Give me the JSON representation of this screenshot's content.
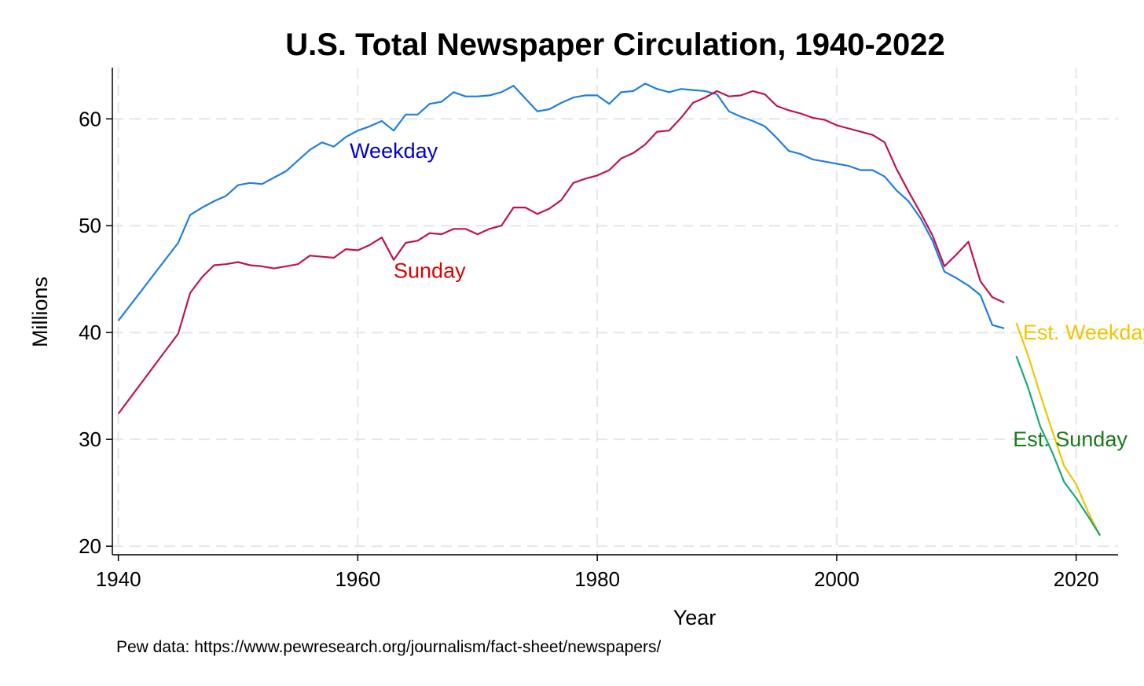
{
  "chart_data": {
    "type": "line",
    "title": "U.S. Total Newspaper Circulation, 1940-2022",
    "xlabel": "Year",
    "ylabel": "Millions",
    "xlim": [
      1939.5,
      2023.5
    ],
    "ylim": [
      19.2,
      64.8
    ],
    "xticks": [
      1940,
      1960,
      1980,
      2000,
      2020
    ],
    "yticks": [
      20,
      30,
      40,
      50,
      60
    ],
    "grid": true,
    "source_note": "Pew data: https://www.pewresearch.org/journalism/fact-sheet/newspapers/",
    "series": [
      {
        "name": "Weekday",
        "color": "#1f7fe0",
        "label_color": "#0000cc",
        "label_at": [
          1963,
          57
        ],
        "x": [
          1940,
          1945,
          1946,
          1947,
          1948,
          1949,
          1950,
          1951,
          1952,
          1953,
          1954,
          1955,
          1956,
          1957,
          1958,
          1959,
          1960,
          1961,
          1962,
          1963,
          1964,
          1965,
          1966,
          1967,
          1968,
          1969,
          1970,
          1971,
          1972,
          1973,
          1974,
          1975,
          1976,
          1977,
          1978,
          1979,
          1980,
          1981,
          1982,
          1983,
          1984,
          1985,
          1986,
          1987,
          1988,
          1989,
          1990,
          1991,
          1992,
          1993,
          1994,
          1995,
          1996,
          1997,
          1998,
          1999,
          2000,
          2001,
          2002,
          2003,
          2004,
          2005,
          2006,
          2007,
          2008,
          2009,
          2010,
          2011,
          2012,
          2013,
          2014
        ],
        "y": [
          41.1,
          48.4,
          51.0,
          51.7,
          52.3,
          52.8,
          53.8,
          54.0,
          53.9,
          54.5,
          55.1,
          56.1,
          57.1,
          57.8,
          57.4,
          58.3,
          58.9,
          59.3,
          59.8,
          58.9,
          60.4,
          60.4,
          61.4,
          61.6,
          62.5,
          62.1,
          62.1,
          62.2,
          62.5,
          63.1,
          61.9,
          60.7,
          60.9,
          61.5,
          62.0,
          62.2,
          62.2,
          61.4,
          62.5,
          62.6,
          63.3,
          62.8,
          62.5,
          62.8,
          62.7,
          62.6,
          62.3,
          60.7,
          60.2,
          59.8,
          59.3,
          58.2,
          57.0,
          56.7,
          56.2,
          56.0,
          55.8,
          55.6,
          55.2,
          55.2,
          54.6,
          53.3,
          52.3,
          50.7,
          48.6,
          45.7,
          45.1,
          44.4,
          43.5,
          40.7,
          40.4
        ]
      },
      {
        "name": "Sunday",
        "color": "#c0134e",
        "label_color": "#dd0000",
        "label_at": [
          1966,
          45.8
        ],
        "x": [
          1940,
          1945,
          1946,
          1947,
          1948,
          1949,
          1950,
          1951,
          1952,
          1953,
          1954,
          1955,
          1956,
          1957,
          1958,
          1959,
          1960,
          1961,
          1962,
          1963,
          1964,
          1965,
          1966,
          1967,
          1968,
          1969,
          1970,
          1971,
          1972,
          1973,
          1974,
          1975,
          1976,
          1977,
          1978,
          1979,
          1980,
          1981,
          1982,
          1983,
          1984,
          1985,
          1986,
          1987,
          1988,
          1989,
          1990,
          1991,
          1992,
          1993,
          1994,
          1995,
          1996,
          1997,
          1998,
          1999,
          2000,
          2001,
          2002,
          2003,
          2004,
          2005,
          2006,
          2007,
          2008,
          2009,
          2010,
          2011,
          2012,
          2013,
          2014
        ],
        "y": [
          32.4,
          39.9,
          43.7,
          45.2,
          46.3,
          46.4,
          46.6,
          46.3,
          46.2,
          46.0,
          46.2,
          46.4,
          47.2,
          47.1,
          47.0,
          47.8,
          47.7,
          48.2,
          48.9,
          46.8,
          48.4,
          48.6,
          49.3,
          49.2,
          49.7,
          49.7,
          49.2,
          49.7,
          50.0,
          51.7,
          51.7,
          51.1,
          51.6,
          52.4,
          54.0,
          54.4,
          54.7,
          55.2,
          56.3,
          56.8,
          57.6,
          58.8,
          58.9,
          60.1,
          61.5,
          62.0,
          62.6,
          62.1,
          62.2,
          62.6,
          62.3,
          61.2,
          60.8,
          60.5,
          60.1,
          59.9,
          59.4,
          59.1,
          58.8,
          58.5,
          57.8,
          55.3,
          53.2,
          51.2,
          49.1,
          46.2,
          47.3,
          48.5,
          44.8,
          43.3,
          42.8
        ]
      },
      {
        "name": "Est. Weekday",
        "color": "#f2c500",
        "label_color": "#f2c500",
        "label_at": [
          2021,
          40
        ],
        "x": [
          2015,
          2016,
          2017,
          2018,
          2019,
          2020,
          2021,
          2022
        ],
        "y": [
          40.9,
          37.8,
          34.2,
          30.8,
          27.5,
          25.8,
          23.2,
          21.0
        ]
      },
      {
        "name": "Est. Sunday",
        "color": "#18a878",
        "label_color": "#1a7a1a",
        "label_at": [
          2019.5,
          30
        ],
        "x": [
          2015,
          2016,
          2017,
          2018,
          2019,
          2020,
          2021,
          2022
        ],
        "y": [
          37.8,
          34.8,
          31.2,
          28.8,
          26.0,
          24.5,
          22.8,
          21.0
        ]
      }
    ]
  }
}
